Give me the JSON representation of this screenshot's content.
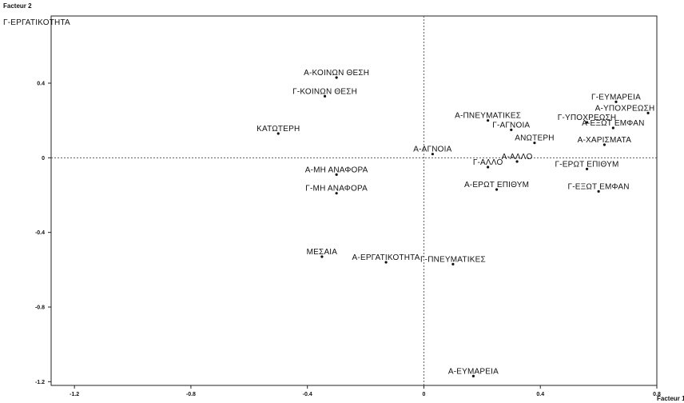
{
  "chart_data": {
    "type": "scatter",
    "xlabel": "Facteur 1",
    "ylabel": "Facteur 2",
    "xlim": [
      -1.28,
      0.8
    ],
    "ylim": [
      -1.22,
      0.76
    ],
    "x_ticks": [
      -1.2,
      -0.8,
      -0.4,
      0,
      0.4,
      0.8
    ],
    "x_tick_labels": [
      "-1.2",
      "-0.8",
      "-0.4",
      "0",
      "0.4",
      "0.8"
    ],
    "y_ticks": [
      0.4,
      0,
      -0.4,
      -0.8,
      -1.2
    ],
    "y_tick_labels": [
      "0.4",
      "0",
      "-0.4",
      "-0.8",
      "-1.2"
    ],
    "reference_lines": {
      "x": 0,
      "y": 0
    },
    "grid": false,
    "points": [
      {
        "label": "Γ-ΕΡΓΑΤΙΚΟΤΗΤΑ",
        "x": -1.34,
        "y": 0.7
      },
      {
        "label": "Α-ΚΟΙΝΩΝ ΘΕΣΗ",
        "x": -0.3,
        "y": 0.43
      },
      {
        "label": "Γ-ΚΟΙΝΩΝ ΘΕΣΗ",
        "x": -0.34,
        "y": 0.33
      },
      {
        "label": "ΚΑΤΩΤΕΡΗ",
        "x": -0.5,
        "y": 0.13
      },
      {
        "label": "Α-ΜΗ ΑΝΑΦΟΡΑ",
        "x": -0.3,
        "y": -0.09
      },
      {
        "label": "Γ-ΜΗ ΑΝΑΦΟΡΑ",
        "x": -0.3,
        "y": -0.19
      },
      {
        "label": "ΜΕΣΑΙΑ",
        "x": -0.35,
        "y": -0.53
      },
      {
        "label": "Α-ΕΡΓΑΤΙΚΟΤΗΤΑ",
        "x": -0.13,
        "y": -0.56
      },
      {
        "label": "Γ-ΠΝΕΥΜΑΤΙΚΕΣ",
        "x": 0.1,
        "y": -0.57
      },
      {
        "label": "Α-ΠΝΕΥΜΑΤΙΚΕΣ",
        "x": 0.22,
        "y": 0.2
      },
      {
        "label": "Γ-ΑΓΝΟΙΑ",
        "x": 0.3,
        "y": 0.15
      },
      {
        "label": "ΑΝΩΤΕΡΗ",
        "x": 0.38,
        "y": 0.08
      },
      {
        "label": "Α-ΑΓΝΟΙΑ",
        "x": 0.03,
        "y": 0.02
      },
      {
        "label": "Α-ΑΛΛΟ",
        "x": 0.32,
        "y": -0.02
      },
      {
        "label": "Γ-ΑΛΛΟ",
        "x": 0.22,
        "y": -0.05
      },
      {
        "label": "Α-ΕΡΩΤ ΕΠΙΘΥΜ",
        "x": 0.25,
        "y": -0.17
      },
      {
        "label": "Γ-ΕΥΜΑΡΕΙΑ",
        "x": 0.66,
        "y": 0.3
      },
      {
        "label": "Α-ΥΠΟΧΡΕΩΣΗ",
        "x": 0.77,
        "y": 0.24
      },
      {
        "label": "Γ-ΥΠΟΧΡΕΩΣΗ",
        "x": 0.56,
        "y": 0.19
      },
      {
        "label": "Α-ΕΞΩΤ ΕΜΦΑΝ",
        "x": 0.65,
        "y": 0.16
      },
      {
        "label": "Α-ΧΑΡΙΣΜΑΤΑ",
        "x": 0.62,
        "y": 0.07
      },
      {
        "label": "Γ-ΕΡΩΤ ΕΠΙΘΥΜ",
        "x": 0.56,
        "y": -0.06
      },
      {
        "label": "Γ-ΕΞΩΤ ΕΜΦΑΝ",
        "x": 0.6,
        "y": -0.18
      },
      {
        "label": "Α-ΕΥΜΑΡΕΙΑ",
        "x": 0.17,
        "y": -1.17
      }
    ]
  }
}
